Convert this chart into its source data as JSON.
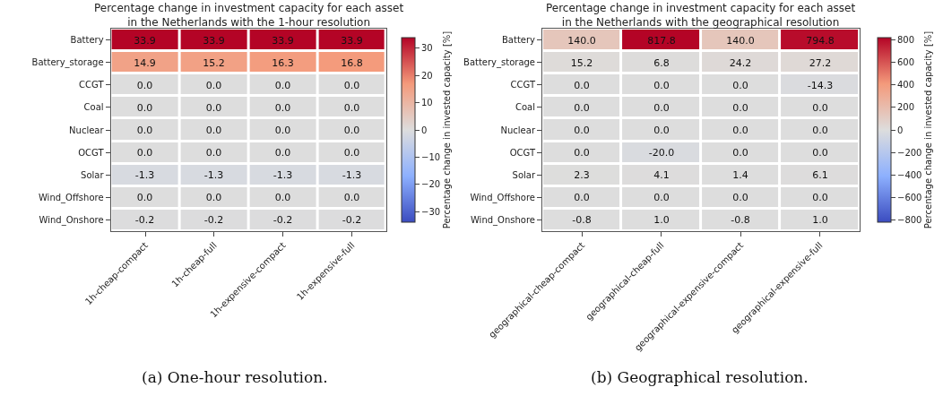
{
  "chart_data": [
    {
      "type": "heatmap",
      "title": "Percentage change in investment capacity for each asset\nin the Netherlands with the 1-hour resolution",
      "categories": [
        "1h-cheap-compact",
        "1h-cheap-full",
        "1h-expensive-compact",
        "1h-expensive-full"
      ],
      "y_categories": [
        "Battery",
        "Battery_storage",
        "CCGT",
        "Coal",
        "Nuclear",
        "OCGT",
        "Solar",
        "Wind_Offshore",
        "Wind_Onshore"
      ],
      "cells": [
        [
          33.9,
          33.9,
          33.9,
          33.9
        ],
        [
          14.9,
          15.2,
          16.3,
          16.8
        ],
        [
          0.0,
          0.0,
          0.0,
          0.0
        ],
        [
          0.0,
          0.0,
          0.0,
          0.0
        ],
        [
          0.0,
          0.0,
          0.0,
          0.0
        ],
        [
          0.0,
          0.0,
          0.0,
          0.0
        ],
        [
          -1.3,
          -1.3,
          -1.3,
          -1.3
        ],
        [
          0.0,
          0.0,
          0.0,
          0.0
        ],
        [
          -0.2,
          -0.2,
          -0.2,
          -0.2
        ]
      ],
      "cell_labels": [
        [
          "33.9",
          "33.9",
          "33.9",
          "33.9"
        ],
        [
          "14.9",
          "15.2",
          "16.3",
          "16.8"
        ],
        [
          "0.0",
          "0.0",
          "0.0",
          "0.0"
        ],
        [
          "0.0",
          "0.0",
          "0.0",
          "0.0"
        ],
        [
          "0.0",
          "0.0",
          "0.0",
          "0.0"
        ],
        [
          "0.0",
          "0.0",
          "0.0",
          "0.0"
        ],
        [
          "-1.3",
          "-1.3",
          "-1.3",
          "-1.3"
        ],
        [
          "0.0",
          "0.0",
          "0.0",
          "0.0"
        ],
        [
          "-0.2",
          "-0.2",
          "-0.2",
          "-0.2"
        ]
      ],
      "clabel": "Percentage change in invested capacity [%]",
      "clim": [
        -33.9,
        33.9
      ],
      "cticks": [
        -30,
        -20,
        -10,
        0,
        10,
        20,
        30
      ],
      "annotations": [
        "(a) One-hour resolution."
      ]
    },
    {
      "type": "heatmap",
      "title": "Percentage change in investment capacity for each asset\nin the Netherlands with the geographical resolution",
      "categories": [
        "geographical-cheap-compact",
        "geographical-cheap-full",
        "geographical-expensive-compact",
        "geographical-expensive-full"
      ],
      "y_categories": [
        "Battery",
        "Battery_storage",
        "CCGT",
        "Coal",
        "Nuclear",
        "OCGT",
        "Solar",
        "Wind_Offshore",
        "Wind_Onshore"
      ],
      "cells": [
        [
          140.0,
          817.8,
          140.0,
          794.8
        ],
        [
          15.2,
          6.8,
          24.2,
          27.2
        ],
        [
          0.0,
          0.0,
          0.0,
          -14.3
        ],
        [
          0.0,
          0.0,
          0.0,
          0.0
        ],
        [
          0.0,
          0.0,
          0.0,
          0.0
        ],
        [
          0.0,
          -20.0,
          0.0,
          0.0
        ],
        [
          2.3,
          4.1,
          1.4,
          6.1
        ],
        [
          0.0,
          0.0,
          0.0,
          0.0
        ],
        [
          -0.8,
          1.0,
          -0.8,
          1.0
        ]
      ],
      "cell_labels": [
        [
          "140.0",
          "817.8",
          "140.0",
          "794.8"
        ],
        [
          "15.2",
          "6.8",
          "24.2",
          "27.2"
        ],
        [
          "0.0",
          "0.0",
          "0.0",
          "-14.3"
        ],
        [
          "0.0",
          "0.0",
          "0.0",
          "0.0"
        ],
        [
          "0.0",
          "0.0",
          "0.0",
          "0.0"
        ],
        [
          "0.0",
          "-20.0",
          "0.0",
          "0.0"
        ],
        [
          "2.3",
          "4.1",
          "1.4",
          "6.1"
        ],
        [
          "0.0",
          "0.0",
          "0.0",
          "0.0"
        ],
        [
          "-0.8",
          "1.0",
          "-0.8",
          "1.0"
        ]
      ],
      "clabel": "Percentage change in invested capacity [%]",
      "clim": [
        -817.8,
        817.8
      ],
      "cticks": [
        -800,
        -600,
        -400,
        -200,
        0,
        200,
        400,
        600,
        800
      ],
      "annotations": [
        "(b) Geographical resolution."
      ]
    }
  ]
}
